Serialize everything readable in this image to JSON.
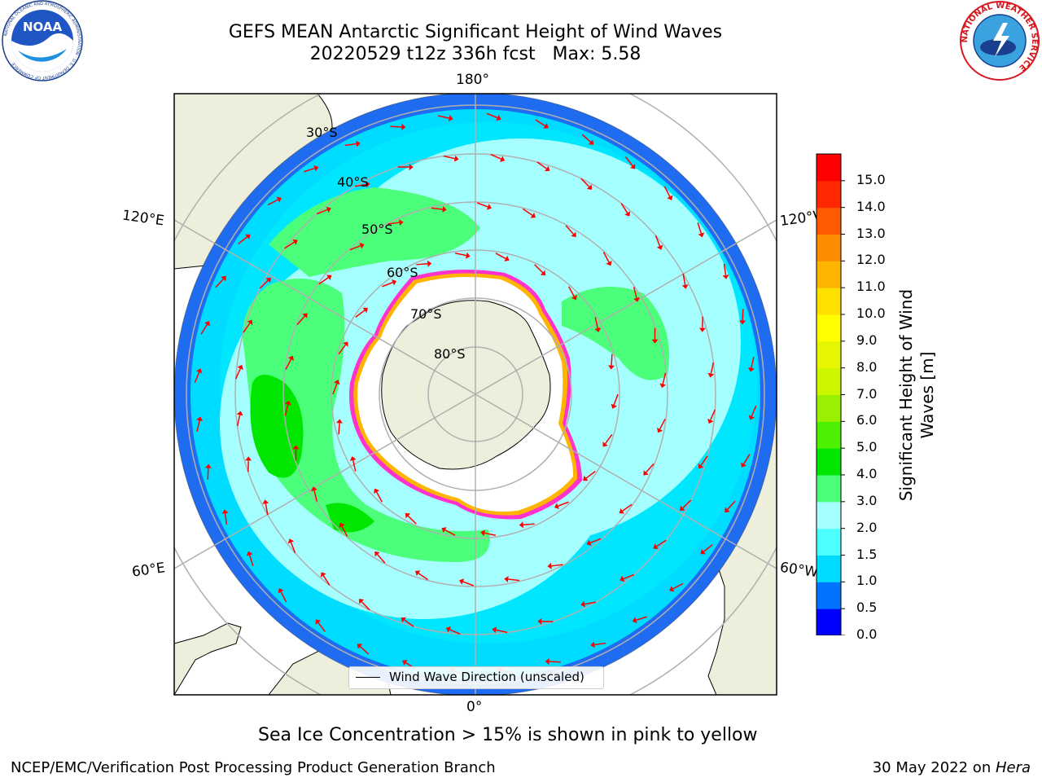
{
  "header": {
    "title_line1": "GEFS MEAN Antarctic Significant Height of Wind Waves",
    "title_line2": "20220529 t12z 336h fcst   Max: 5.58"
  },
  "logos": {
    "left": "NOAA",
    "left_ring_text": "NATIONAL OCEANIC AND ATMOSPHERIC ADMINISTRATION · U.S. DEPARTMENT OF COMMERCE",
    "right_ring_text": "NATIONAL WEATHER SERVICE"
  },
  "map": {
    "longitude_labels": {
      "top": "180°",
      "upper_left": "120°E",
      "upper_right": "120°W",
      "lower_left": "60°E",
      "lower_right": "60°W",
      "bottom": "0°"
    },
    "latitude_labels": [
      "30°S",
      "40°S",
      "50°S",
      "60°S",
      "70°S",
      "80°S"
    ],
    "legend_label": "Wind Wave Direction (unscaled)",
    "arrow_color": "#ff0000"
  },
  "colorbar": {
    "title": "Significant Height of Wind Waves [m]",
    "tick_labels": [
      "0.0",
      "0.5",
      "1.0",
      "1.5",
      "2.0",
      "3.0",
      "4.0",
      "5.0",
      "6.0",
      "7.0",
      "8.0",
      "9.0",
      "10.0",
      "11.0",
      "12.0",
      "13.0",
      "14.0",
      "15.0"
    ],
    "colors": [
      "#0000ff",
      "#0073ff",
      "#00dcff",
      "#4cffff",
      "#a6ffff",
      "#4cff7a",
      "#00e600",
      "#4cf000",
      "#99f000",
      "#ccf500",
      "#e6f500",
      "#ffff00",
      "#ffe100",
      "#ffb400",
      "#ff8c00",
      "#ff5a00",
      "#ff2800",
      "#ff0000"
    ]
  },
  "footer": {
    "note": "Sea Ice Concentration > 15% is shown in pink to yellow",
    "left": "NCEP/EMC/Verification Post Processing Product Generation Branch",
    "right_prefix": "30 May 2022 on ",
    "right_machine": "Hera"
  }
}
